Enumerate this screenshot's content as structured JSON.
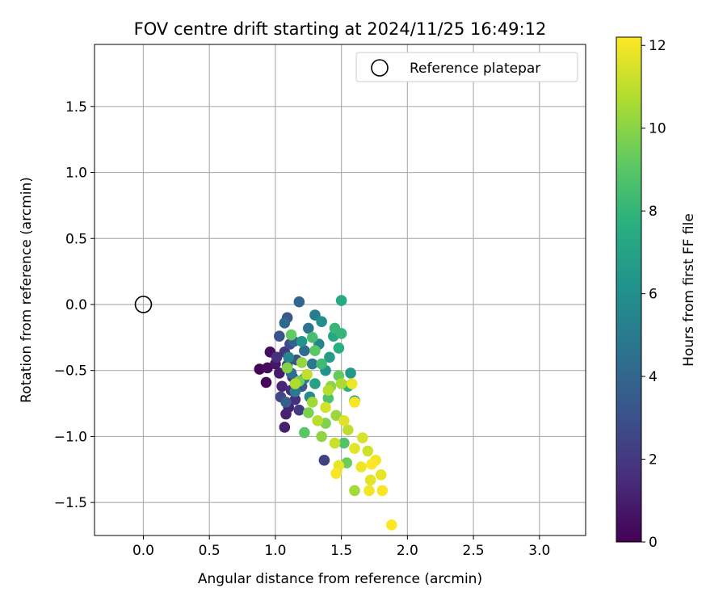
{
  "chart_data": {
    "type": "scatter",
    "title": "FOV centre drift starting at 2024/11/25 16:49:12",
    "xlabel": "Angular distance from reference (arcmin)",
    "ylabel": "Rotation from reference (arcmin)",
    "xlim": [
      -0.37,
      3.35
    ],
    "ylim": [
      -1.75,
      1.97
    ],
    "xticks": [
      0.0,
      0.5,
      1.0,
      1.5,
      2.0,
      2.5,
      3.0
    ],
    "yticks": [
      -1.5,
      -1.0,
      -0.5,
      0.0,
      0.5,
      1.0,
      1.5
    ],
    "xtick_labels": [
      "0.0",
      "0.5",
      "1.0",
      "1.5",
      "2.0",
      "2.5",
      "3.0"
    ],
    "ytick_labels": [
      "−1.5",
      "−1.0",
      "−0.5",
      "0.0",
      "0.5",
      "1.0",
      "1.5"
    ],
    "grid": true,
    "legend": {
      "placement": "top-right",
      "entries": [
        {
          "label": "Reference platepar",
          "marker": "open-circle"
        }
      ]
    },
    "reference_point": {
      "x": 0.0,
      "y": 0.0
    },
    "colorbar": {
      "label": "Hours from first FF file",
      "colormap": "viridis",
      "range": [
        0,
        12.2
      ],
      "ticks": [
        0,
        2,
        4,
        6,
        8,
        10,
        12
      ],
      "tick_labels": [
        "0",
        "2",
        "4",
        "6",
        "8",
        "10",
        "12"
      ]
    },
    "series": [
      {
        "points": [
          {
            "x": 0.88,
            "y": -0.49,
            "c": 0.1
          },
          {
            "x": 0.93,
            "y": -0.59,
            "c": 0.2
          },
          {
            "x": 0.94,
            "y": -0.48,
            "c": 0.4
          },
          {
            "x": 0.96,
            "y": -0.36,
            "c": 0.5
          },
          {
            "x": 1.0,
            "y": -0.45,
            "c": 0.7
          },
          {
            "x": 1.03,
            "y": -0.52,
            "c": 0.9
          },
          {
            "x": 1.07,
            "y": -0.93,
            "c": 1.0
          },
          {
            "x": 1.08,
            "y": -0.83,
            "c": 1.1
          },
          {
            "x": 1.1,
            "y": -0.78,
            "c": 1.2
          },
          {
            "x": 1.05,
            "y": -0.62,
            "c": 1.3
          },
          {
            "x": 1.12,
            "y": -0.65,
            "c": 1.5
          },
          {
            "x": 1.15,
            "y": -0.72,
            "c": 1.6
          },
          {
            "x": 1.01,
            "y": -0.4,
            "c": 1.7
          },
          {
            "x": 1.07,
            "y": -0.36,
            "c": 1.9
          },
          {
            "x": 1.13,
            "y": -0.55,
            "c": 2.0
          },
          {
            "x": 1.18,
            "y": -0.8,
            "c": 2.1
          },
          {
            "x": 1.37,
            "y": -1.18,
            "c": 2.3
          },
          {
            "x": 1.09,
            "y": -0.46,
            "c": 2.4
          },
          {
            "x": 1.04,
            "y": -0.7,
            "c": 2.6
          },
          {
            "x": 1.11,
            "y": -0.3,
            "c": 2.8
          },
          {
            "x": 1.16,
            "y": -0.42,
            "c": 3.0
          },
          {
            "x": 1.03,
            "y": -0.24,
            "c": 3.1
          },
          {
            "x": 1.09,
            "y": -0.1,
            "c": 3.3
          },
          {
            "x": 1.2,
            "y": -0.62,
            "c": 3.4
          },
          {
            "x": 1.08,
            "y": -0.74,
            "c": 3.6
          },
          {
            "x": 1.14,
            "y": -0.28,
            "c": 3.8
          },
          {
            "x": 1.18,
            "y": 0.02,
            "c": 4.0
          },
          {
            "x": 1.07,
            "y": -0.14,
            "c": 4.1
          },
          {
            "x": 1.22,
            "y": -0.35,
            "c": 4.3
          },
          {
            "x": 1.12,
            "y": -0.52,
            "c": 4.4
          },
          {
            "x": 1.25,
            "y": -0.18,
            "c": 4.6
          },
          {
            "x": 1.28,
            "y": -0.45,
            "c": 4.8
          },
          {
            "x": 1.15,
            "y": -0.66,
            "c": 5.0
          },
          {
            "x": 1.3,
            "y": -0.08,
            "c": 5.1
          },
          {
            "x": 1.22,
            "y": -0.56,
            "c": 5.3
          },
          {
            "x": 1.33,
            "y": -0.3,
            "c": 5.5
          },
          {
            "x": 1.1,
            "y": -0.4,
            "c": 5.6
          },
          {
            "x": 1.26,
            "y": -0.7,
            "c": 5.8
          },
          {
            "x": 1.35,
            "y": -0.13,
            "c": 6.0
          },
          {
            "x": 1.38,
            "y": -0.5,
            "c": 6.2
          },
          {
            "x": 1.2,
            "y": -0.28,
            "c": 6.3
          },
          {
            "x": 1.57,
            "y": -0.52,
            "c": 6.5
          },
          {
            "x": 1.41,
            "y": -0.4,
            "c": 6.7
          },
          {
            "x": 1.6,
            "y": -0.73,
            "c": 6.8
          },
          {
            "x": 1.3,
            "y": -0.6,
            "c": 7.0
          },
          {
            "x": 1.44,
            "y": -0.24,
            "c": 7.2
          },
          {
            "x": 1.5,
            "y": 0.03,
            "c": 7.4
          },
          {
            "x": 1.48,
            "y": -0.33,
            "c": 7.6
          },
          {
            "x": 1.55,
            "y": -0.62,
            "c": 7.8
          },
          {
            "x": 1.5,
            "y": -0.22,
            "c": 8.0
          },
          {
            "x": 1.45,
            "y": -0.18,
            "c": 8.1
          },
          {
            "x": 1.35,
            "y": -0.45,
            "c": 8.3
          },
          {
            "x": 1.28,
            "y": -0.25,
            "c": 8.5
          },
          {
            "x": 1.4,
            "y": -0.71,
            "c": 8.7
          },
          {
            "x": 1.52,
            "y": -1.05,
            "c": 8.8
          },
          {
            "x": 1.22,
            "y": -0.97,
            "c": 9.0
          },
          {
            "x": 1.3,
            "y": -0.35,
            "c": 9.1
          },
          {
            "x": 1.12,
            "y": -0.23,
            "c": 9.2
          },
          {
            "x": 1.48,
            "y": -0.54,
            "c": 9.3
          },
          {
            "x": 1.54,
            "y": -1.2,
            "c": 9.4
          },
          {
            "x": 1.18,
            "y": -0.58,
            "c": 9.6
          },
          {
            "x": 1.25,
            "y": -0.82,
            "c": 9.7
          },
          {
            "x": 1.38,
            "y": -0.9,
            "c": 9.8
          },
          {
            "x": 1.09,
            "y": -0.48,
            "c": 9.9
          },
          {
            "x": 1.42,
            "y": -0.62,
            "c": 10.0
          },
          {
            "x": 1.35,
            "y": -1.0,
            "c": 10.1
          },
          {
            "x": 1.2,
            "y": -0.44,
            "c": 10.2
          },
          {
            "x": 1.46,
            "y": -0.84,
            "c": 10.3
          },
          {
            "x": 1.28,
            "y": -0.74,
            "c": 10.4
          },
          {
            "x": 1.6,
            "y": -1.41,
            "c": 10.5
          },
          {
            "x": 1.5,
            "y": -0.6,
            "c": 10.6
          },
          {
            "x": 1.15,
            "y": -0.6,
            "c": 10.7
          },
          {
            "x": 1.4,
            "y": -0.65,
            "c": 10.8
          },
          {
            "x": 1.32,
            "y": -0.88,
            "c": 10.9
          },
          {
            "x": 1.55,
            "y": -0.95,
            "c": 11.0
          },
          {
            "x": 1.24,
            "y": -0.53,
            "c": 11.1
          },
          {
            "x": 1.45,
            "y": -1.05,
            "c": 11.2
          },
          {
            "x": 1.7,
            "y": -1.11,
            "c": 11.3
          },
          {
            "x": 1.38,
            "y": -0.78,
            "c": 11.4
          },
          {
            "x": 1.66,
            "y": -1.01,
            "c": 11.5
          },
          {
            "x": 1.52,
            "y": -0.88,
            "c": 11.6
          },
          {
            "x": 1.72,
            "y": -1.33,
            "c": 11.7
          },
          {
            "x": 1.6,
            "y": -1.09,
            "c": 11.7
          },
          {
            "x": 1.8,
            "y": -1.29,
            "c": 11.8
          },
          {
            "x": 1.48,
            "y": -1.22,
            "c": 11.8
          },
          {
            "x": 1.65,
            "y": -1.23,
            "c": 11.9
          },
          {
            "x": 1.58,
            "y": -0.6,
            "c": 11.9
          },
          {
            "x": 1.76,
            "y": -1.18,
            "c": 12.0
          },
          {
            "x": 1.71,
            "y": -1.41,
            "c": 12.0
          },
          {
            "x": 1.81,
            "y": -1.41,
            "c": 12.1
          },
          {
            "x": 1.6,
            "y": -0.74,
            "c": 12.1
          },
          {
            "x": 1.46,
            "y": -1.28,
            "c": 12.1
          },
          {
            "x": 1.88,
            "y": -1.67,
            "c": 12.2
          },
          {
            "x": 1.73,
            "y": -1.21,
            "c": 12.2
          }
        ]
      }
    ]
  }
}
